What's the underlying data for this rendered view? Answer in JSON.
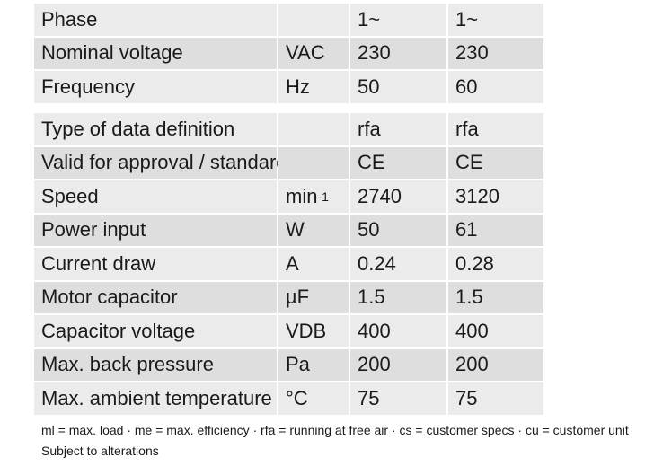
{
  "table_general": [
    {
      "name": "Phase",
      "unit": "",
      "v50": "1~",
      "v60": "1~"
    },
    {
      "name": "Nominal voltage",
      "unit": "VAC",
      "v50": "230",
      "v60": "230"
    },
    {
      "name": "Frequency",
      "unit": "Hz",
      "v50": "50",
      "v60": "60"
    }
  ],
  "table_data": [
    {
      "name": "Type of data definition",
      "unit": "",
      "v50": "rfa",
      "v60": "rfa"
    },
    {
      "name": "Valid for approval / standard",
      "unit": "",
      "v50": "CE",
      "v60": "CE"
    },
    {
      "name": "Speed",
      "unit": "min",
      "unit_sup": "-1",
      "v50": "2740",
      "v60": "3120"
    },
    {
      "name": "Power input",
      "unit": "W",
      "v50": "50",
      "v60": "61"
    },
    {
      "name": "Current draw",
      "unit": "A",
      "v50": "0.24",
      "v60": "0.28"
    },
    {
      "name": "Motor capacitor",
      "unit": "µF",
      "v50": "1.5",
      "v60": "1.5"
    },
    {
      "name": "Capacitor voltage",
      "unit": "VDB",
      "v50": "400",
      "v60": "400"
    },
    {
      "name": "Max. back pressure",
      "unit": "Pa",
      "v50": "200",
      "v60": "200"
    },
    {
      "name": "Max. ambient temperature",
      "unit": "°C",
      "v50": "75",
      "v60": "75"
    }
  ],
  "notes": {
    "legend": "ml = max. load · me = max. efficiency · rfa = running at free air · cs = customer specs · cu = customer unit",
    "alterations": "Subject to alterations"
  }
}
